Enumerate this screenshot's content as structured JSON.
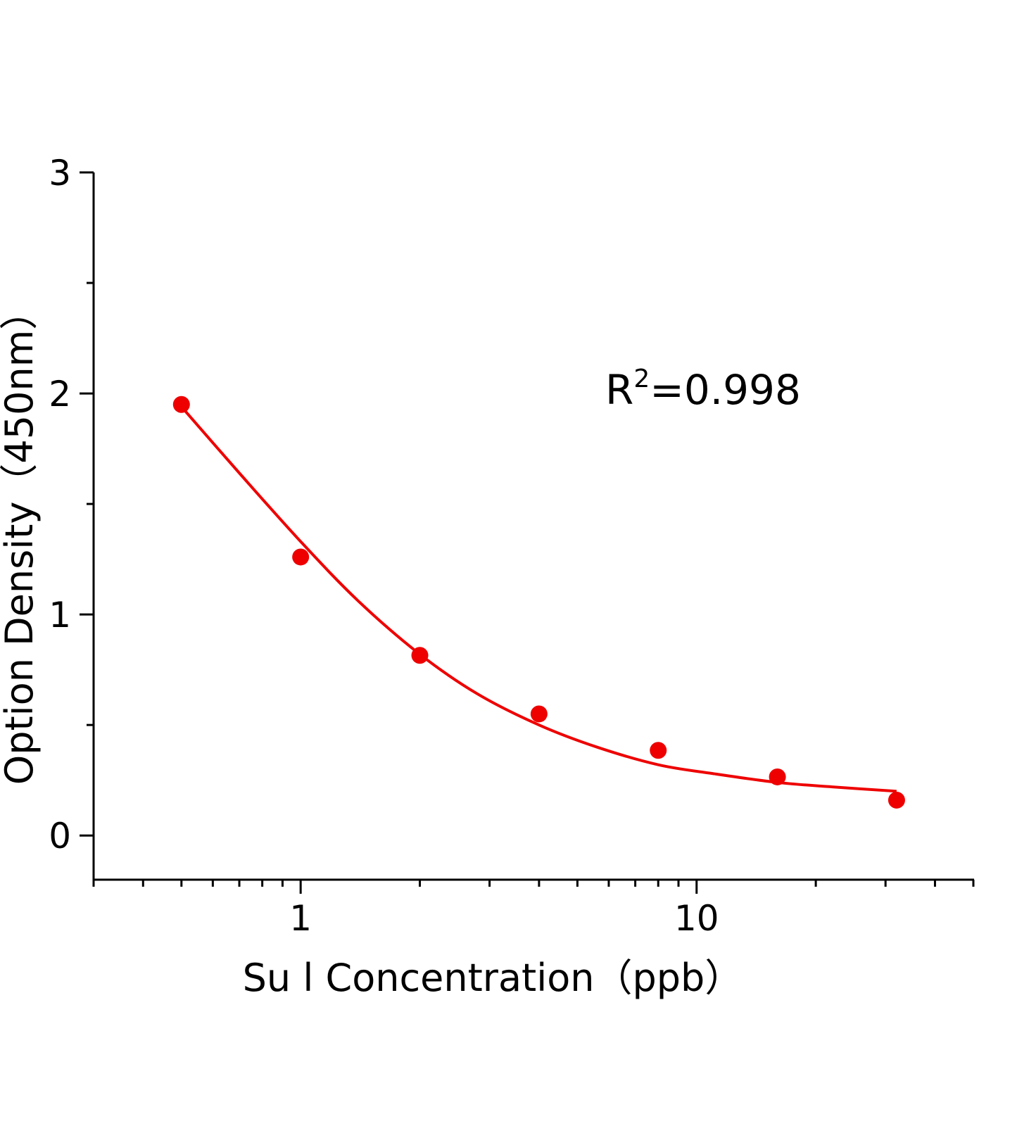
{
  "chart_data": {
    "type": "scatter",
    "title": "",
    "xlabel": "Su l Concentration（ppb）",
    "ylabel": "Option Density（450nm）",
    "xscale": "log",
    "xlim": [
      0.3,
      50
    ],
    "ylim": [
      -0.2,
      3
    ],
    "x_tick_labels": [
      "1",
      "10"
    ],
    "x_ticks": [
      1,
      10
    ],
    "y_tick_labels": [
      "0",
      "1",
      "2",
      "3"
    ],
    "y_ticks": [
      0,
      1,
      2,
      3
    ],
    "grid": false,
    "color": "#ee0000",
    "annotation": {
      "base": "R",
      "sup": "2",
      "rest": "=0.998"
    },
    "series": [
      {
        "kind": "points",
        "x": [
          0.5,
          1,
          2,
          4,
          8,
          16,
          32
        ],
        "y": [
          1.95,
          1.26,
          0.815,
          0.55,
          0.385,
          0.265,
          0.16
        ]
      },
      {
        "kind": "fit-curve",
        "x": [
          0.5,
          0.7,
          1,
          1.4,
          2,
          2.8,
          4,
          5.6,
          8,
          11,
          16,
          22,
          32
        ],
        "y": [
          1.94,
          1.64,
          1.33,
          1.06,
          0.82,
          0.64,
          0.5,
          0.4,
          0.32,
          0.28,
          0.24,
          0.22,
          0.2
        ]
      }
    ]
  }
}
